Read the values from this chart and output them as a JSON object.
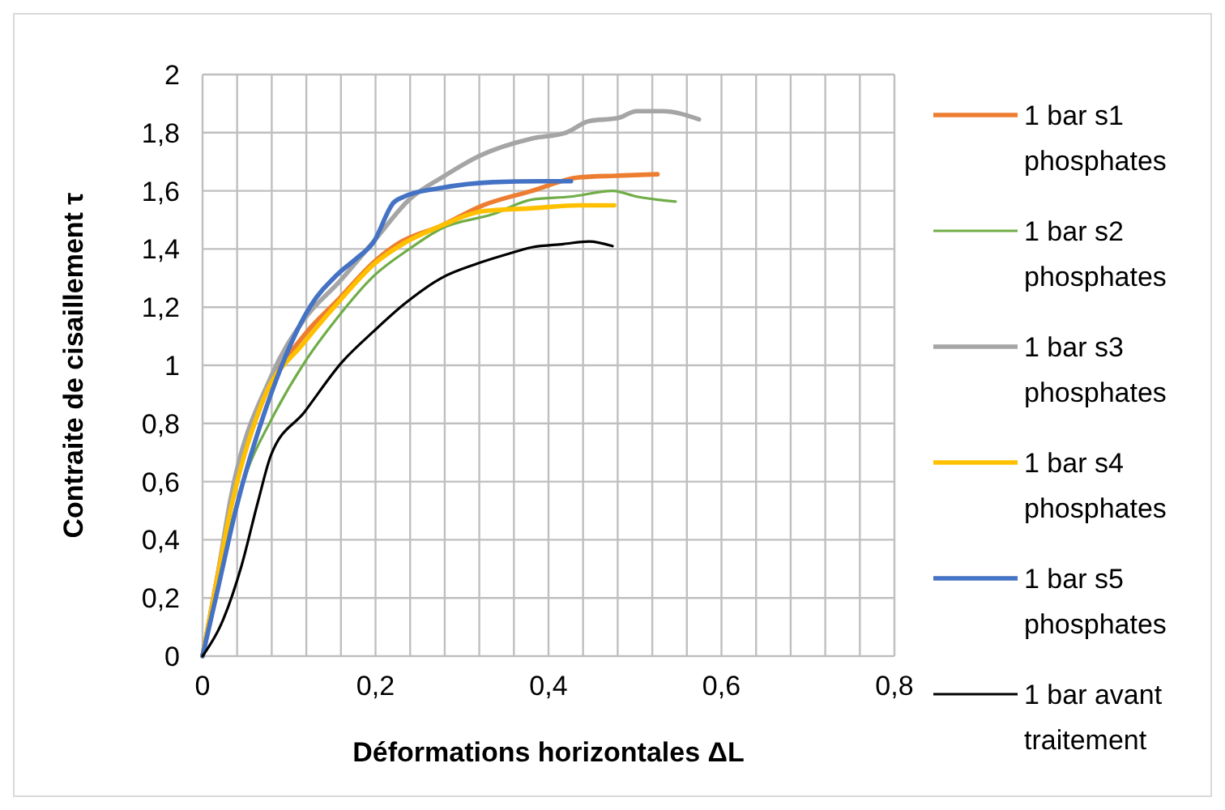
{
  "chart_data": {
    "type": "line",
    "xlabel": "Déformations horizontales ΔL",
    "ylabel": "Contraite de cisaillement τ",
    "xlim": [
      0,
      0.8
    ],
    "ylim": [
      0,
      2
    ],
    "grid": true,
    "legend": "right",
    "marker": "none",
    "line_style": "solid",
    "xticks": [
      0,
      {
        "value": 0.04,
        "label": null
      },
      {
        "value": 0.08,
        "label": null
      },
      {
        "value": 0.12,
        "label": null
      },
      {
        "value": 0.16,
        "label": null
      },
      {
        "value": 0.2,
        "label": "0,2"
      },
      {
        "value": 0.24,
        "label": null
      },
      {
        "value": 0.28,
        "label": null
      },
      {
        "value": 0.32,
        "label": null
      },
      {
        "value": 0.36,
        "label": null
      },
      {
        "value": 0.4,
        "label": "0,4"
      },
      {
        "value": 0.44,
        "label": null
      },
      {
        "value": 0.48,
        "label": null
      },
      {
        "value": 0.52,
        "label": null
      },
      {
        "value": 0.56,
        "label": null
      },
      {
        "value": 0.6,
        "label": "0,6"
      },
      {
        "value": 0.64,
        "label": null
      },
      {
        "value": 0.68,
        "label": null
      },
      {
        "value": 0.72,
        "label": null
      },
      {
        "value": 0.76,
        "label": null
      },
      {
        "value": 0.8,
        "label": "0,8"
      }
    ],
    "yticks": [
      0,
      {
        "value": 0.2,
        "label": "0,2"
      },
      {
        "value": 0.4,
        "label": "0,4"
      },
      {
        "value": 0.6,
        "label": "0,6"
      },
      {
        "value": 0.8,
        "label": "0,8"
      },
      1,
      {
        "value": 1.2,
        "label": "1,2"
      },
      {
        "value": 1.4,
        "label": "1,4"
      },
      {
        "value": 1.6,
        "label": "1,6"
      },
      {
        "value": 1.8,
        "label": "1,8"
      },
      2
    ],
    "series": [
      {
        "name": "1 bar s1 phosphates",
        "color": "#ed7d31",
        "x": [
          0,
          0.015,
          0.033,
          0.07,
          0.118,
          0.155,
          0.2,
          0.227,
          0.276,
          0.324,
          0.381,
          0.435,
          0.478,
          0.526
        ],
        "values": [
          0,
          0.24,
          0.52,
          0.88,
          1.105,
          1.22,
          1.36,
          1.42,
          1.48,
          1.55,
          1.6,
          1.646,
          1.652,
          1.657
        ]
      },
      {
        "name": "1 bar s2 phosphates",
        "color": "#70ad47",
        "x": [
          0,
          0.021,
          0.052,
          0.079,
          0.118,
          0.155,
          0.199,
          0.239,
          0.276,
          0.336,
          0.381,
          0.426,
          0.474,
          0.502,
          0.547
        ],
        "values": [
          0,
          0.31,
          0.64,
          0.81,
          1.01,
          1.16,
          1.31,
          1.4,
          1.47,
          1.52,
          1.57,
          1.58,
          1.6,
          1.58,
          1.563
        ]
      },
      {
        "name": "1 bar s3 phosphates",
        "color": "#a5a5a5",
        "x": [
          0,
          0.015,
          0.033,
          0.079,
          0.118,
          0.159,
          0.199,
          0.239,
          0.279,
          0.32,
          0.381,
          0.42,
          0.447,
          0.48,
          0.502,
          0.532,
          0.574
        ],
        "values": [
          0,
          0.235,
          0.55,
          0.96,
          1.16,
          1.29,
          1.43,
          1.57,
          1.65,
          1.72,
          1.78,
          1.8,
          1.84,
          1.85,
          1.874,
          1.874,
          1.846
        ]
      },
      {
        "name": "1 bar s4 phosphates",
        "color": "#ffc000",
        "x": [
          0,
          0.015,
          0.033,
          0.07,
          0.118,
          0.155,
          0.199,
          0.233,
          0.276,
          0.324,
          0.381,
          0.435,
          0.476
        ],
        "values": [
          0,
          0.235,
          0.51,
          0.88,
          1.08,
          1.21,
          1.35,
          1.42,
          1.48,
          1.53,
          1.54,
          1.55,
          1.55
        ]
      },
      {
        "name": "1 bar s5 phosphates",
        "color": "#4472c4",
        "x": [
          0,
          0.018,
          0.039,
          0.079,
          0.124,
          0.155,
          0.179,
          0.197,
          0.221,
          0.233,
          0.276,
          0.336,
          0.39,
          0.426
        ],
        "values": [
          0,
          0.235,
          0.51,
          0.9,
          1.2,
          1.31,
          1.37,
          1.42,
          1.56,
          1.58,
          1.61,
          1.63,
          1.633,
          1.633
        ]
      },
      {
        "name": "1 bar avant traitement",
        "color": "#000000",
        "x": [
          0,
          0.021,
          0.045,
          0.064,
          0.079,
          0.118,
          0.161,
          0.199,
          0.233,
          0.276,
          0.318,
          0.35,
          0.381,
          0.417,
          0.447,
          0.474
        ],
        "values": [
          0,
          0.106,
          0.31,
          0.53,
          0.69,
          0.84,
          1.01,
          1.12,
          1.21,
          1.3,
          1.35,
          1.38,
          1.406,
          1.417,
          1.426,
          1.41
        ]
      }
    ]
  }
}
